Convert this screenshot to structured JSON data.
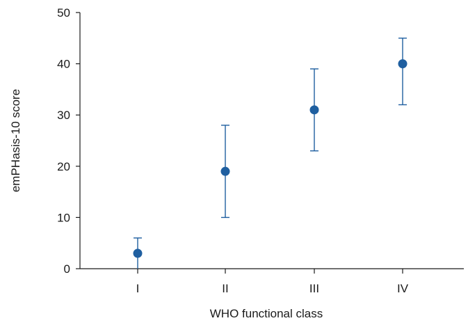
{
  "chart_data": {
    "type": "scatter",
    "title": "",
    "xlabel": "WHO functional class",
    "ylabel": "emPHasis-10 score",
    "categories": [
      "I",
      "II",
      "III",
      "IV"
    ],
    "series": [
      {
        "values": [
          3,
          19,
          31,
          40
        ],
        "lower": [
          0,
          10,
          23,
          32
        ],
        "upper": [
          6,
          28,
          39,
          45
        ]
      }
    ],
    "ylim": [
      0,
      50
    ],
    "yticks": [
      0,
      10,
      20,
      30,
      40,
      50
    ],
    "grid": false,
    "colors": {
      "marker": "#1f5fa0",
      "errorbar": "#1f5fa0",
      "axis": "#1a1a1a"
    }
  }
}
